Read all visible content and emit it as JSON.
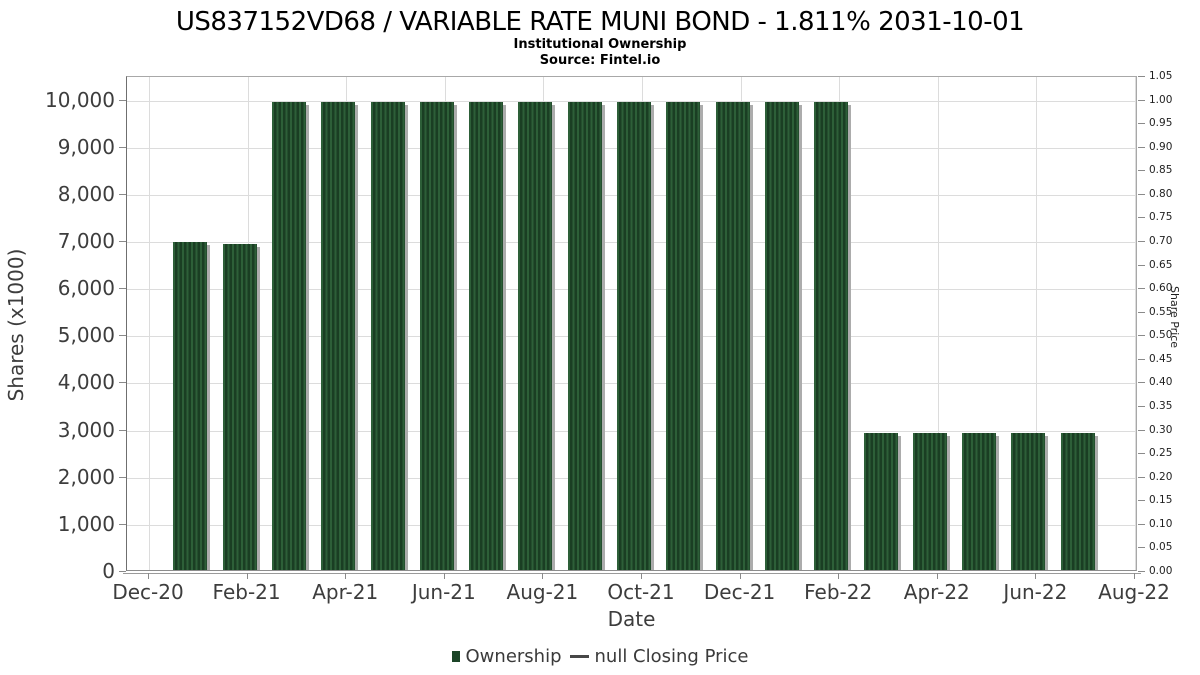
{
  "chart_data": {
    "type": "bar",
    "title": "US837152VD68 / VARIABLE RATE MUNI BOND - 1.811% 2031-10-01",
    "subtitle": "Institutional Ownership",
    "source": "Source: Fintel.io",
    "xlabel": "Date",
    "ylabel": "Shares (x1000)",
    "ylabel_right": "Share Price",
    "ylim_left": [
      0,
      10500
    ],
    "ylim_right": [
      0,
      1.05
    ],
    "grid": true,
    "legend_position": "bottom",
    "x_axis_range": [
      "Dec-20",
      "Aug-22"
    ],
    "categories": [
      "Jan-21",
      "Feb-21",
      "Mar-21",
      "Apr-21",
      "May-21",
      "Jun-21",
      "Jul-21",
      "Aug-21",
      "Sep-21",
      "Oct-21",
      "Nov-21",
      "Dec-21",
      "Jan-22",
      "Feb-22",
      "Mar-22",
      "Apr-22",
      "May-22",
      "Jun-22",
      "Jul-22"
    ],
    "series": [
      {
        "name": "Ownership",
        "type": "bar",
        "values": [
          6990,
          6960,
          9970,
          9970,
          9970,
          9970,
          9970,
          9970,
          9970,
          9970,
          9970,
          9970,
          9970,
          9970,
          2950,
          2950,
          2950,
          2950,
          2950
        ]
      },
      {
        "name": "null Closing Price",
        "type": "line",
        "values": []
      }
    ],
    "x_tick_labels": [
      "Dec-20",
      "Feb-21",
      "Apr-21",
      "Jun-21",
      "Aug-21",
      "Oct-21",
      "Dec-21",
      "Feb-22",
      "Apr-22",
      "Jun-22",
      "Aug-22"
    ],
    "left_tick_labels": [
      "0",
      "1,000",
      "2,000",
      "3,000",
      "4,000",
      "5,000",
      "6,000",
      "7,000",
      "8,000",
      "9,000",
      "10,000"
    ],
    "right_tick_labels": [
      "0.00",
      "0.05",
      "0.10",
      "0.15",
      "0.20",
      "0.25",
      "0.30",
      "0.35",
      "0.40",
      "0.45",
      "0.50",
      "0.55",
      "0.60",
      "0.65",
      "0.70",
      "0.75",
      "0.80",
      "0.85",
      "0.90",
      "0.95",
      "1.00",
      "1.05"
    ],
    "colors": {
      "bar_stripe_light": "#2d5f38",
      "bar_stripe_dark": "#1a3e23",
      "bar_shadow": "#acacac",
      "legend_square": "#1c4527",
      "gridline": "#dcdcdc",
      "tick_text": "#3d3d3d"
    }
  }
}
